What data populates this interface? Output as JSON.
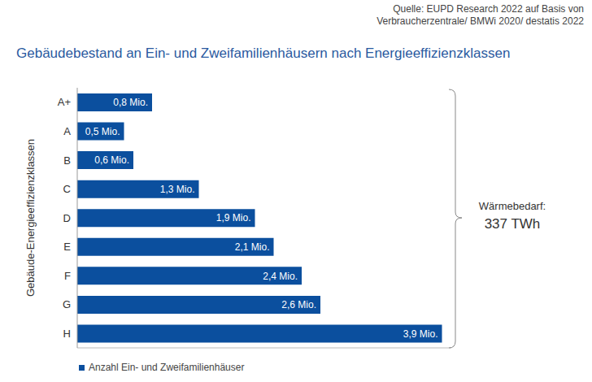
{
  "chart_data": {
    "type": "bar",
    "title": "Gebäudebestand an Ein- und Zweifamilienhäusern nach Energieeffizienzklassen",
    "source": [
      "Quelle: EUPD Research 2022 auf Basis von",
      "Verbraucherzentrale/ BMWi 2020/ destatis 2022"
    ],
    "ylabel": "Gebäude-Energieeffizienzklassen",
    "categories": [
      "A+",
      "A",
      "B",
      "C",
      "D",
      "E",
      "F",
      "G",
      "H"
    ],
    "series": [
      {
        "name": "Anzahl Ein- und Zweifamilienhäuser",
        "color": "#0b4f9e",
        "values": [
          0.8,
          0.5,
          0.6,
          1.3,
          1.9,
          2.1,
          2.4,
          2.6,
          3.9
        ],
        "value_labels": [
          "0,8 Mio.",
          "0,5 Mio.",
          "0,6 Mio.",
          "1,3 Mio.",
          "1,9 Mio.",
          "2,1 Mio.",
          "2,4 Mio.",
          "2,6 Mio.",
          "3,9 Mio."
        ]
      }
    ],
    "annotations": [
      "Wärmebedarf:",
      "337 TWh"
    ],
    "xlim": [
      0,
      4
    ],
    "xticks": [],
    "orientation": "horizontal",
    "data_labels": true,
    "tick_labels": "y",
    "legend": "bottom-left",
    "grid": false
  }
}
